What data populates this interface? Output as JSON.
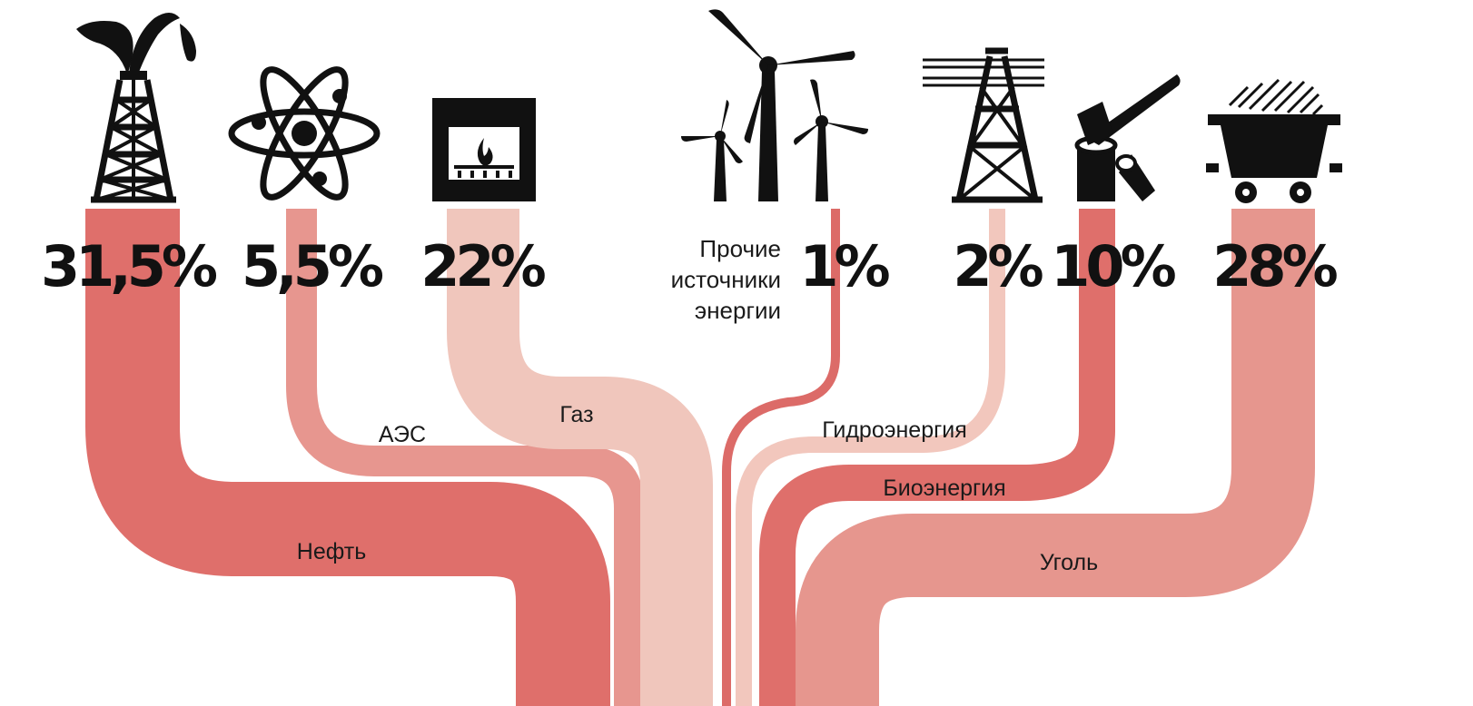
{
  "sources": [
    {
      "key": "oil",
      "label": "Нефть",
      "share": "31,5%",
      "value": 31.5,
      "icon": "oil-derrick-icon",
      "color": "#df6f6b"
    },
    {
      "key": "nuclear",
      "label": "АЭС",
      "share": "5,5%",
      "value": 5.5,
      "icon": "atom-icon",
      "color": "#e7968f"
    },
    {
      "key": "gas",
      "label": "Газ",
      "share": "22%",
      "value": 22,
      "icon": "gas-furnace-icon",
      "color": "#f0c6bc"
    },
    {
      "key": "other",
      "label": "",
      "share": "1%",
      "value": 1,
      "icon": "wind-turbines-icon",
      "color": "#dc6b68"
    },
    {
      "key": "hydro",
      "label": "Гидроэнергия",
      "share": "2%",
      "value": 2,
      "icon": "power-pylon-icon",
      "color": "#f2c7bd"
    },
    {
      "key": "bio",
      "label": "Биоэнергия",
      "share": "10%",
      "value": 10,
      "icon": "axe-stump-icon",
      "color": "#df6f6b"
    },
    {
      "key": "coal",
      "label": "Уголь",
      "share": "28%",
      "value": 28,
      "icon": "coal-minecart-icon",
      "color": "#e6968e"
    }
  ],
  "other_sources_label": [
    "Прочие",
    "источники",
    "энергии"
  ]
}
